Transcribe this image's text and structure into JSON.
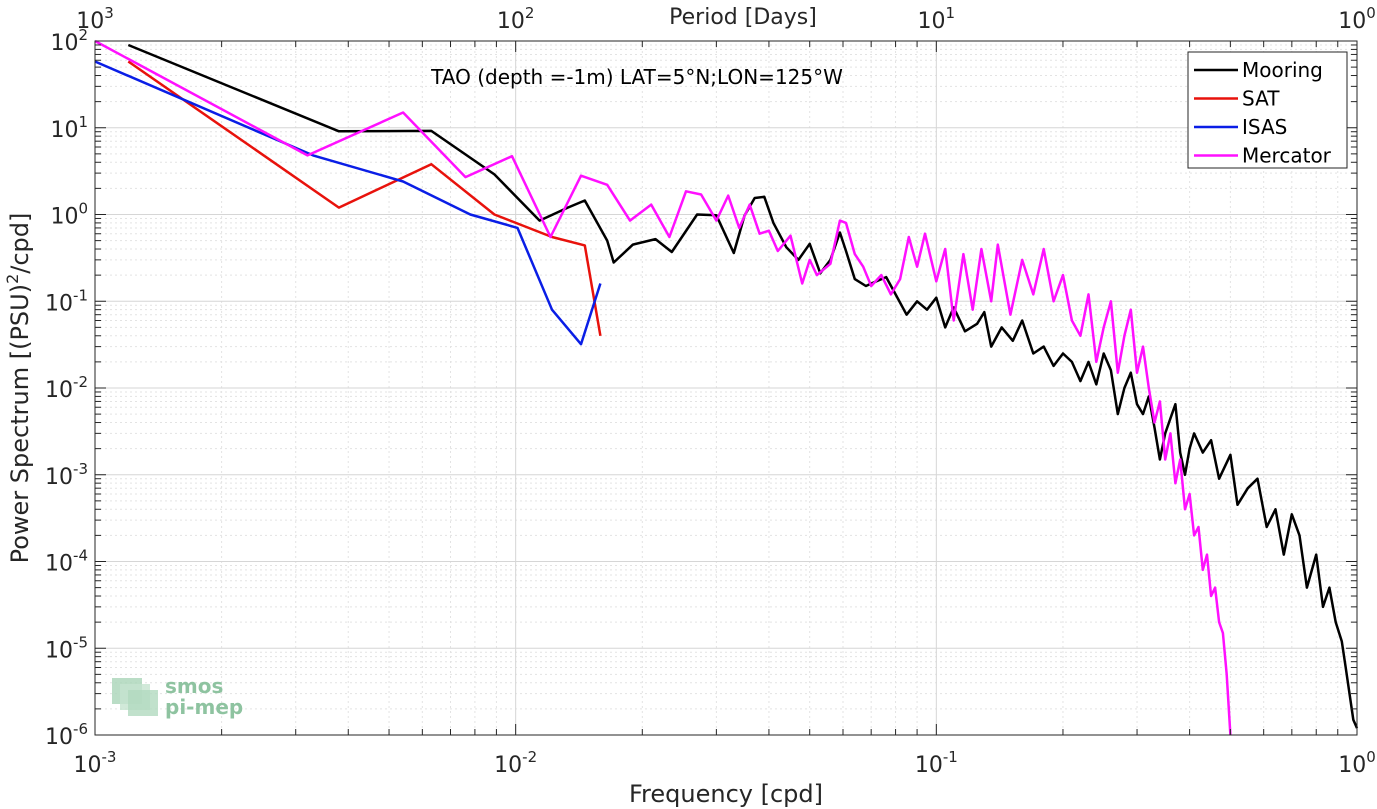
{
  "chart_data": {
    "type": "line",
    "title": "TAO (depth =-1m) LAT=5°N;LON=125°W",
    "xlabel": "Frequency [cpd]",
    "ylabel": "Power Spectrum [(PSU)^2/cpd]",
    "top_xlabel": "Period [Days]",
    "xscale": "log",
    "yscale": "log",
    "xlim": [
      0.001,
      1
    ],
    "ylim": [
      1e-06,
      100
    ],
    "grid": true,
    "legend_position": "top-right",
    "x_ticks": [
      {
        "base": "10",
        "exp": "-3",
        "value": 0.001
      },
      {
        "base": "10",
        "exp": "-2",
        "value": 0.01
      },
      {
        "base": "10",
        "exp": "-1",
        "value": 0.1
      },
      {
        "base": "10",
        "exp": "0",
        "value": 1
      }
    ],
    "top_ticks": [
      {
        "base": "10",
        "exp": "3",
        "value": 0.001
      },
      {
        "base": "10",
        "exp": "2",
        "value": 0.01
      },
      {
        "base": "10",
        "exp": "1",
        "value": 0.1
      },
      {
        "base": "10",
        "exp": "0",
        "value": 1
      }
    ],
    "y_ticks": [
      {
        "base": "10",
        "exp": "2",
        "value": 100
      },
      {
        "base": "10",
        "exp": "1",
        "value": 10
      },
      {
        "base": "10",
        "exp": "0",
        "value": 1
      },
      {
        "base": "10",
        "exp": "-1",
        "value": 0.1
      },
      {
        "base": "10",
        "exp": "-2",
        "value": 0.01
      },
      {
        "base": "10",
        "exp": "-3",
        "value": 0.001
      },
      {
        "base": "10",
        "exp": "-4",
        "value": 0.0001
      },
      {
        "base": "10",
        "exp": "-5",
        "value": 1e-05
      },
      {
        "base": "10",
        "exp": "-6",
        "value": 1e-06
      }
    ],
    "series": [
      {
        "name": "Mooring",
        "color": "#000000",
        "points": [
          [
            0.0012,
            90
          ],
          [
            0.0038,
            9.1
          ],
          [
            0.0063,
            9.2
          ],
          [
            0.0089,
            2.9
          ],
          [
            0.0114,
            0.85
          ],
          [
            0.0133,
            1.2
          ],
          [
            0.0146,
            1.45
          ],
          [
            0.0165,
            0.5
          ],
          [
            0.0171,
            0.28
          ],
          [
            0.019,
            0.45
          ],
          [
            0.0215,
            0.52
          ],
          [
            0.0235,
            0.37
          ],
          [
            0.027,
            1.0
          ],
          [
            0.03,
            0.98
          ],
          [
            0.033,
            0.36
          ],
          [
            0.035,
            0.97
          ],
          [
            0.037,
            1.55
          ],
          [
            0.039,
            1.6
          ],
          [
            0.041,
            0.8
          ],
          [
            0.044,
            0.42
          ],
          [
            0.047,
            0.3
          ],
          [
            0.05,
            0.46
          ],
          [
            0.053,
            0.21
          ],
          [
            0.056,
            0.3
          ],
          [
            0.059,
            0.62
          ],
          [
            0.061,
            0.38
          ],
          [
            0.064,
            0.18
          ],
          [
            0.068,
            0.15
          ],
          [
            0.072,
            0.17
          ],
          [
            0.076,
            0.19
          ],
          [
            0.08,
            0.12
          ],
          [
            0.085,
            0.07
          ],
          [
            0.09,
            0.1
          ],
          [
            0.095,
            0.08
          ],
          [
            0.1,
            0.11
          ],
          [
            0.105,
            0.05
          ],
          [
            0.11,
            0.085
          ],
          [
            0.117,
            0.045
          ],
          [
            0.125,
            0.055
          ],
          [
            0.13,
            0.075
          ],
          [
            0.135,
            0.03
          ],
          [
            0.143,
            0.05
          ],
          [
            0.152,
            0.035
          ],
          [
            0.16,
            0.06
          ],
          [
            0.17,
            0.025
          ],
          [
            0.18,
            0.03
          ],
          [
            0.19,
            0.018
          ],
          [
            0.2,
            0.025
          ],
          [
            0.21,
            0.02
          ],
          [
            0.22,
            0.012
          ],
          [
            0.23,
            0.02
          ],
          [
            0.24,
            0.011
          ],
          [
            0.25,
            0.025
          ],
          [
            0.26,
            0.016
          ],
          [
            0.27,
            0.005
          ],
          [
            0.28,
            0.01
          ],
          [
            0.29,
            0.015
          ],
          [
            0.3,
            0.0065
          ],
          [
            0.31,
            0.005
          ],
          [
            0.32,
            0.008
          ],
          [
            0.33,
            0.0035
          ],
          [
            0.34,
            0.0015
          ],
          [
            0.35,
            0.003
          ],
          [
            0.37,
            0.0065
          ],
          [
            0.38,
            0.0018
          ],
          [
            0.39,
            0.001
          ],
          [
            0.4,
            0.002
          ],
          [
            0.41,
            0.003
          ],
          [
            0.43,
            0.0018
          ],
          [
            0.45,
            0.0025
          ],
          [
            0.47,
            0.0009
          ],
          [
            0.5,
            0.0017
          ],
          [
            0.52,
            0.00045
          ],
          [
            0.55,
            0.0007
          ],
          [
            0.58,
            0.0009
          ],
          [
            0.61,
            0.00025
          ],
          [
            0.64,
            0.0004
          ],
          [
            0.67,
            0.00012
          ],
          [
            0.7,
            0.00035
          ],
          [
            0.73,
            0.0002
          ],
          [
            0.76,
            5e-05
          ],
          [
            0.8,
            0.00012
          ],
          [
            0.83,
            3e-05
          ],
          [
            0.86,
            5e-05
          ],
          [
            0.89,
            2e-05
          ],
          [
            0.92,
            1.2e-05
          ],
          [
            0.94,
            6e-06
          ],
          [
            0.96,
            3e-06
          ],
          [
            0.98,
            1.5e-06
          ],
          [
            1.0,
            1.2e-06
          ]
        ]
      },
      {
        "name": "SAT",
        "color": "#e8120c",
        "points": [
          [
            0.0012,
            58
          ],
          [
            0.0038,
            1.2
          ],
          [
            0.0063,
            3.8
          ],
          [
            0.0089,
            1.0
          ],
          [
            0.0122,
            0.55
          ],
          [
            0.0146,
            0.44
          ],
          [
            0.0159,
            0.04
          ]
        ]
      },
      {
        "name": "ISAS",
        "color": "#0a1ee6",
        "points": [
          [
            0.001,
            58
          ],
          [
            0.0033,
            4.8
          ],
          [
            0.0054,
            2.4
          ],
          [
            0.0078,
            1.0
          ],
          [
            0.0101,
            0.7
          ],
          [
            0.0122,
            0.08
          ],
          [
            0.0143,
            0.032
          ],
          [
            0.0159,
            0.16
          ]
        ]
      },
      {
        "name": "Mercator",
        "color": "#ff10ff",
        "points": [
          [
            0.001,
            100
          ],
          [
            0.0032,
            4.8
          ],
          [
            0.0054,
            15
          ],
          [
            0.0076,
            2.7
          ],
          [
            0.0098,
            4.7
          ],
          [
            0.0121,
            0.55
          ],
          [
            0.0143,
            2.8
          ],
          [
            0.0165,
            2.2
          ],
          [
            0.0187,
            0.85
          ],
          [
            0.021,
            1.3
          ],
          [
            0.0232,
            0.55
          ],
          [
            0.0254,
            1.85
          ],
          [
            0.0276,
            1.7
          ],
          [
            0.03,
            0.85
          ],
          [
            0.032,
            1.65
          ],
          [
            0.034,
            0.7
          ],
          [
            0.036,
            1.3
          ],
          [
            0.038,
            0.6
          ],
          [
            0.04,
            0.65
          ],
          [
            0.042,
            0.38
          ],
          [
            0.045,
            0.57
          ],
          [
            0.048,
            0.16
          ],
          [
            0.05,
            0.3
          ],
          [
            0.052,
            0.2
          ],
          [
            0.056,
            0.27
          ],
          [
            0.059,
            0.85
          ],
          [
            0.061,
            0.8
          ],
          [
            0.064,
            0.35
          ],
          [
            0.067,
            0.25
          ],
          [
            0.07,
            0.15
          ],
          [
            0.074,
            0.2
          ],
          [
            0.078,
            0.12
          ],
          [
            0.082,
            0.18
          ],
          [
            0.086,
            0.55
          ],
          [
            0.09,
            0.25
          ],
          [
            0.094,
            0.6
          ],
          [
            0.1,
            0.17
          ],
          [
            0.105,
            0.4
          ],
          [
            0.11,
            0.06
          ],
          [
            0.116,
            0.35
          ],
          [
            0.122,
            0.08
          ],
          [
            0.128,
            0.4
          ],
          [
            0.135,
            0.1
          ],
          [
            0.14,
            0.45
          ],
          [
            0.15,
            0.07
          ],
          [
            0.16,
            0.3
          ],
          [
            0.17,
            0.12
          ],
          [
            0.18,
            0.4
          ],
          [
            0.19,
            0.1
          ],
          [
            0.2,
            0.2
          ],
          [
            0.21,
            0.06
          ],
          [
            0.22,
            0.04
          ],
          [
            0.23,
            0.12
          ],
          [
            0.24,
            0.02
          ],
          [
            0.25,
            0.05
          ],
          [
            0.26,
            0.1
          ],
          [
            0.27,
            0.015
          ],
          [
            0.28,
            0.04
          ],
          [
            0.29,
            0.08
          ],
          [
            0.3,
            0.015
          ],
          [
            0.31,
            0.03
          ],
          [
            0.32,
            0.01
          ],
          [
            0.33,
            0.004
          ],
          [
            0.34,
            0.007
          ],
          [
            0.35,
            0.0015
          ],
          [
            0.36,
            0.003
          ],
          [
            0.37,
            0.0008
          ],
          [
            0.38,
            0.0015
          ],
          [
            0.39,
            0.0004
          ],
          [
            0.4,
            0.0006
          ],
          [
            0.41,
            0.0002
          ],
          [
            0.42,
            0.00025
          ],
          [
            0.43,
            8e-05
          ],
          [
            0.44,
            0.00012
          ],
          [
            0.45,
            4e-05
          ],
          [
            0.46,
            5e-05
          ],
          [
            0.47,
            2e-05
          ],
          [
            0.48,
            1.5e-05
          ],
          [
            0.49,
            5e-06
          ],
          [
            0.5,
            1e-06
          ]
        ]
      }
    ]
  },
  "logo": {
    "line1": "smos",
    "line2": "pi-mep"
  }
}
